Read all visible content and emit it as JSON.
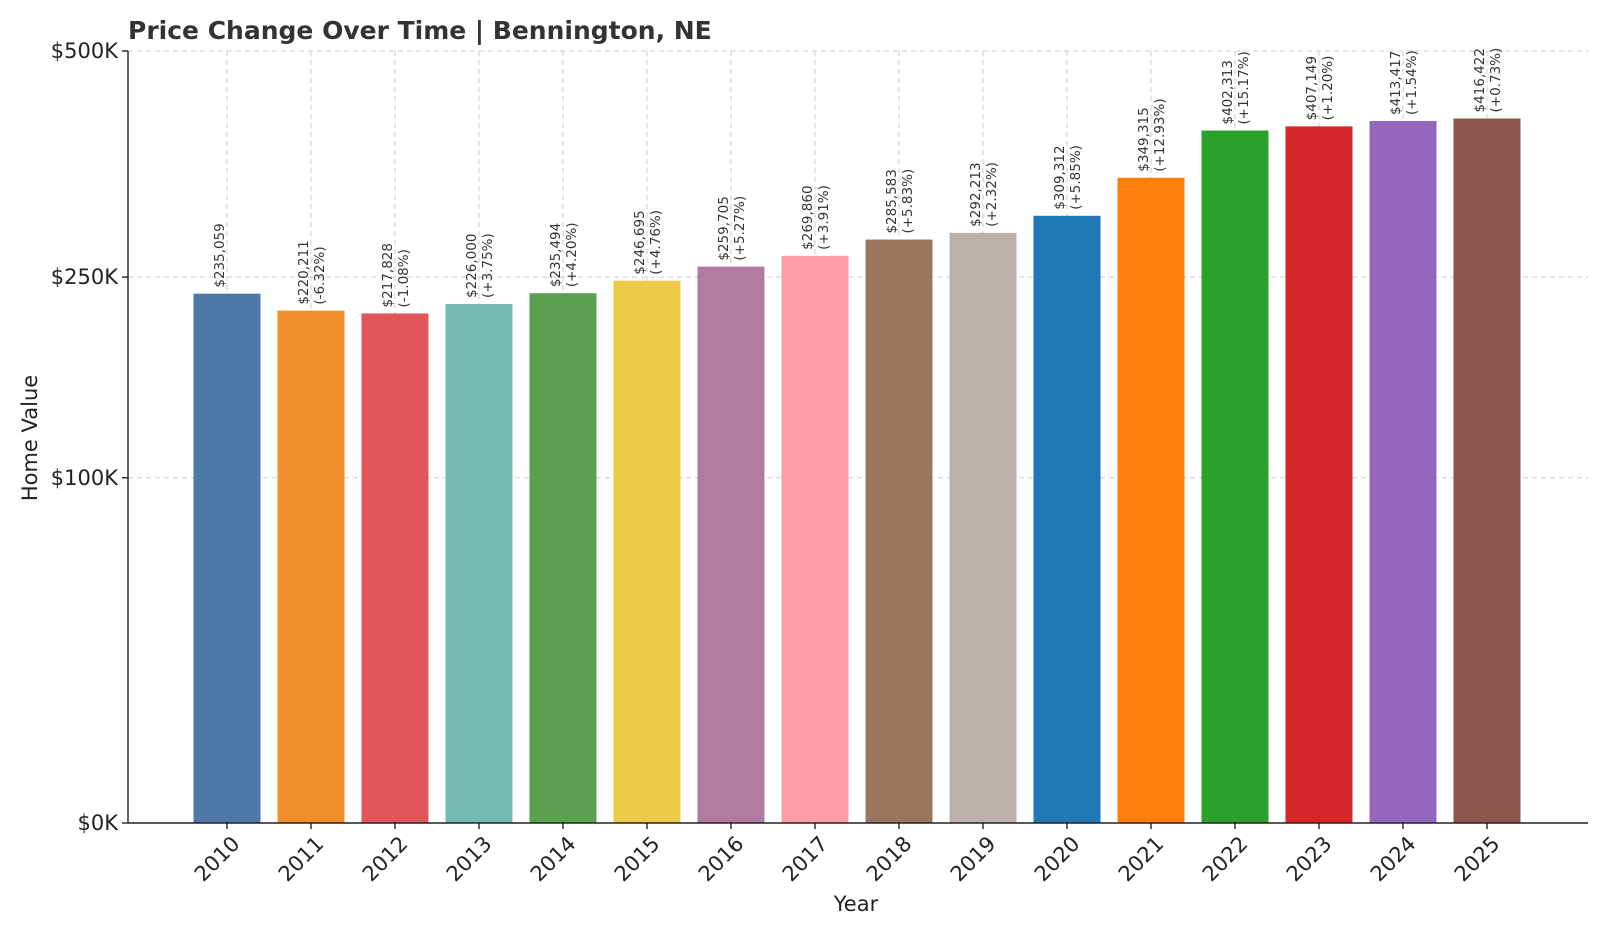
{
  "chart_data": {
    "type": "bar",
    "title": "Price Change Over Time | Bennington, NE",
    "xlabel": "Year",
    "ylabel": "Home Value",
    "categories": [
      "2010",
      "2011",
      "2012",
      "2013",
      "2014",
      "2015",
      "2016",
      "2017",
      "2018",
      "2019",
      "2020",
      "2021",
      "2022",
      "2023",
      "2024",
      "2025"
    ],
    "values": [
      235059,
      220211,
      217828,
      226000,
      235494,
      246695,
      259705,
      269860,
      285583,
      292213,
      309312,
      349315,
      402313,
      407149,
      413417,
      416422
    ],
    "value_labels": [
      "$235,059",
      "$220,211",
      "$217,828",
      "$226,000",
      "$235,494",
      "$246,695",
      "$259,705",
      "$269,860",
      "$285,583",
      "$292,213",
      "$309,312",
      "$349,315",
      "$402,313",
      "$407,149",
      "$413,417",
      "$416,422"
    ],
    "change_labels": [
      "",
      "(-6.32%)",
      "(-1.08%)",
      "(+3.75%)",
      "(+4.20%)",
      "(+4.76%)",
      "(+5.27%)",
      "(+3.91%)",
      "(+5.83%)",
      "(+2.32%)",
      "(+5.85%)",
      "(+12.93%)",
      "(+15.17%)",
      "(+1.20%)",
      "(+1.54%)",
      "(+0.73%)"
    ],
    "colors": [
      "#4e79a7",
      "#f28e2b",
      "#e15759",
      "#76b7b2",
      "#59a14f",
      "#edc948",
      "#b07aa1",
      "#ff9da7",
      "#9c755f",
      "#bab0ac",
      "#1f77b4",
      "#ff7f0e",
      "#2ca02c",
      "#d62728",
      "#9467bd",
      "#8c564b"
    ],
    "y_ticks": [
      0,
      100000,
      250000,
      500000
    ],
    "y_tick_labels": [
      "$0K",
      "$100K",
      "$250K",
      "$500K"
    ],
    "ylim": [
      0,
      500000
    ],
    "grid": true
  }
}
